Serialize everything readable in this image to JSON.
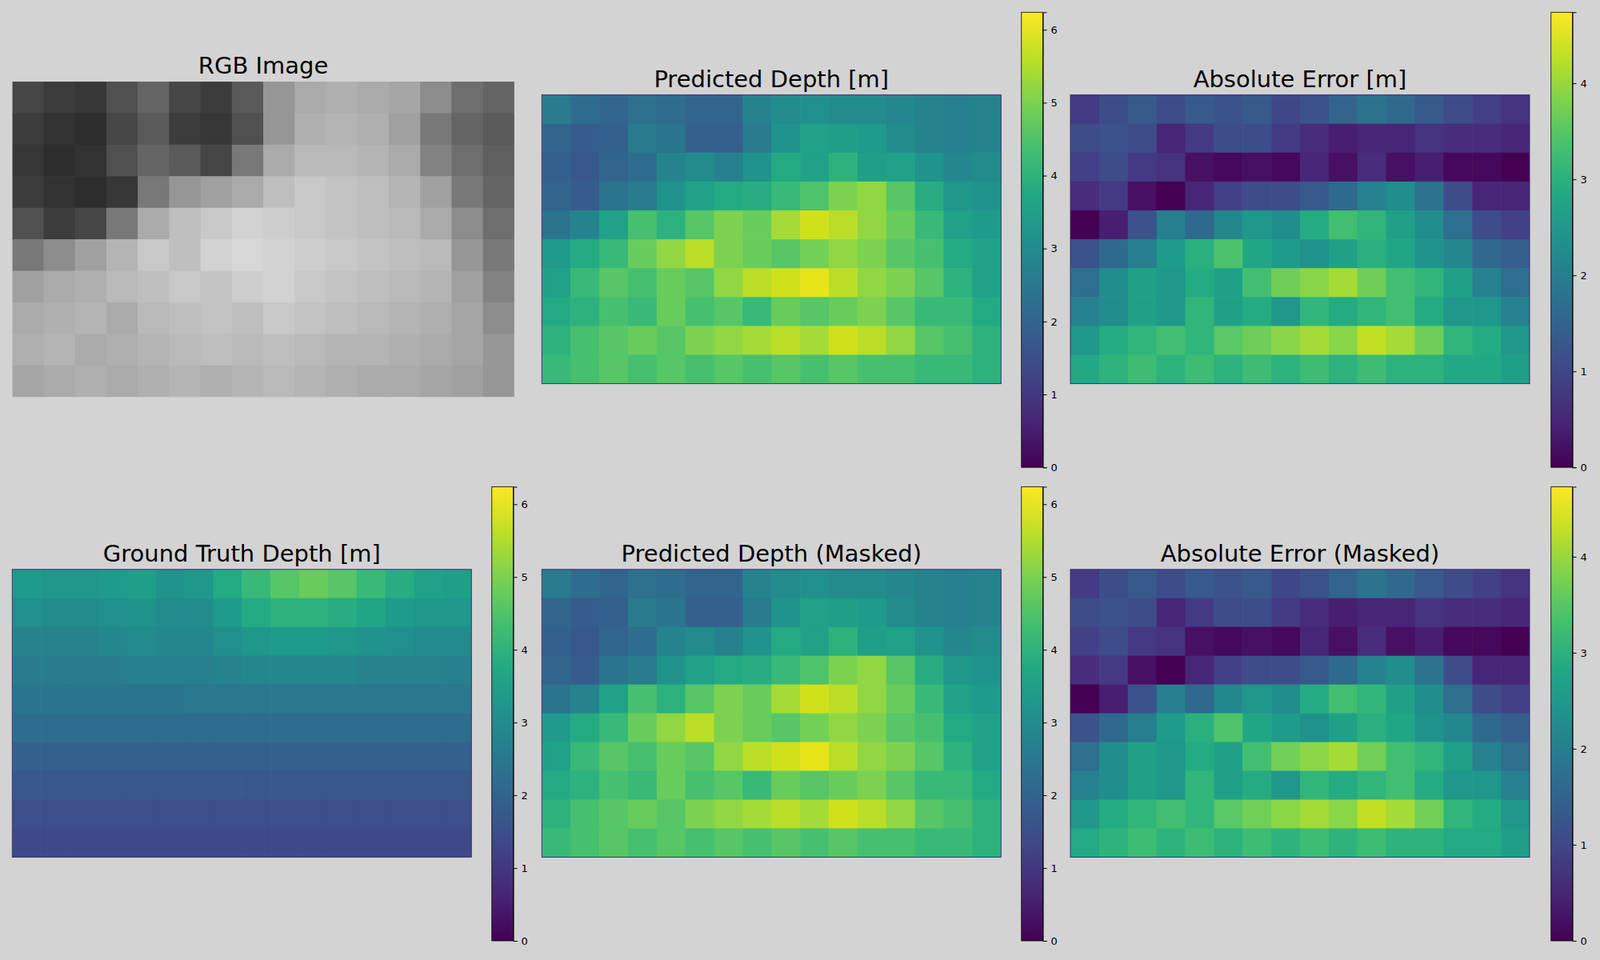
{
  "chart_data": [
    {
      "type": "image",
      "title": "RGB Image",
      "tick_labels": false,
      "cells": [
        [
          70,
          60,
          55,
          80,
          100,
          70,
          60,
          90,
          150,
          170,
          175,
          170,
          165,
          140,
          110,
          100
        ],
        [
          60,
          50,
          45,
          70,
          90,
          60,
          55,
          80,
          150,
          175,
          180,
          175,
          160,
          120,
          100,
          90
        ],
        [
          55,
          45,
          50,
          80,
          100,
          90,
          70,
          120,
          170,
          185,
          185,
          180,
          170,
          130,
          110,
          95
        ],
        [
          60,
          50,
          45,
          55,
          120,
          150,
          160,
          170,
          190,
          200,
          195,
          190,
          180,
          160,
          120,
          100
        ],
        [
          80,
          60,
          70,
          120,
          170,
          190,
          200,
          210,
          205,
          200,
          195,
          190,
          185,
          170,
          140,
          110
        ],
        [
          120,
          140,
          160,
          180,
          200,
          190,
          210,
          215,
          210,
          205,
          200,
          195,
          190,
          185,
          150,
          120
        ],
        [
          160,
          170,
          175,
          185,
          190,
          200,
          195,
          205,
          210,
          200,
          195,
          190,
          185,
          180,
          160,
          130
        ],
        [
          170,
          175,
          180,
          170,
          185,
          190,
          195,
          190,
          200,
          195,
          190,
          185,
          180,
          175,
          165,
          140
        ],
        [
          175,
          180,
          170,
          175,
          180,
          185,
          190,
          185,
          190,
          185,
          180,
          180,
          175,
          170,
          165,
          150
        ],
        [
          165,
          170,
          175,
          170,
          175,
          180,
          175,
          180,
          185,
          180,
          175,
          170,
          170,
          165,
          160,
          150
        ]
      ]
    },
    {
      "type": "heatmap",
      "title": "Predicted Depth [m]",
      "tick_labels": false,
      "color_range": [
        0,
        6.24
      ],
      "color_ticks": [
        0,
        1,
        2,
        3,
        4,
        5,
        6
      ],
      "cells": [
        [
          2.6,
          2.2,
          2.0,
          2.3,
          2.2,
          2.0,
          2.0,
          2.8,
          3.0,
          3.1,
          3.0,
          3.0,
          2.9,
          2.8,
          2.7,
          2.8
        ],
        [
          2.0,
          1.8,
          1.9,
          2.6,
          2.4,
          1.9,
          1.9,
          2.6,
          3.2,
          3.6,
          3.5,
          3.4,
          3.0,
          2.8,
          2.7,
          2.8
        ],
        [
          1.9,
          1.7,
          2.0,
          2.2,
          2.8,
          3.0,
          2.7,
          3.2,
          3.8,
          3.6,
          4.0,
          3.5,
          3.6,
          3.2,
          2.9,
          3.0
        ],
        [
          2.0,
          1.8,
          2.4,
          2.6,
          3.2,
          3.6,
          3.8,
          3.9,
          4.2,
          4.5,
          5.0,
          5.2,
          4.6,
          3.9,
          3.3,
          3.2
        ],
        [
          2.4,
          2.8,
          3.6,
          4.4,
          4.0,
          4.6,
          5.0,
          4.8,
          5.4,
          5.8,
          5.6,
          5.2,
          4.8,
          4.2,
          3.6,
          3.4
        ],
        [
          3.4,
          3.8,
          4.2,
          4.8,
          5.2,
          5.6,
          5.0,
          4.8,
          4.6,
          4.9,
          5.2,
          5.0,
          4.6,
          4.4,
          3.8,
          3.6
        ],
        [
          3.6,
          4.2,
          4.6,
          4.4,
          4.8,
          4.6,
          5.2,
          5.6,
          5.8,
          6.0,
          5.6,
          5.2,
          5.0,
          4.6,
          4.0,
          3.6
        ],
        [
          3.8,
          4.0,
          4.4,
          4.2,
          4.8,
          4.4,
          4.6,
          4.2,
          4.8,
          4.6,
          4.8,
          5.0,
          4.6,
          4.2,
          4.2,
          3.8
        ],
        [
          4.0,
          4.4,
          4.6,
          4.8,
          4.6,
          5.0,
          5.2,
          5.4,
          5.6,
          5.4,
          5.8,
          5.6,
          5.2,
          4.6,
          4.4,
          4.0
        ],
        [
          4.2,
          4.4,
          4.6,
          4.4,
          4.6,
          4.4,
          4.6,
          4.4,
          4.6,
          4.4,
          4.6,
          4.4,
          4.4,
          4.2,
          4.2,
          4.0
        ]
      ]
    },
    {
      "type": "heatmap",
      "title": "Absolute Error [m]",
      "tick_labels": false,
      "color_range": [
        0,
        4.74
      ],
      "color_ticks": [
        0,
        1,
        2,
        3,
        4
      ],
      "cells": [
        [
          0.8,
          1.1,
          1.3,
          1.1,
          1.3,
          1.2,
          1.3,
          1.0,
          1.2,
          1.5,
          1.8,
          1.6,
          1.3,
          1.1,
          0.9,
          0.7
        ],
        [
          1.1,
          1.2,
          1.1,
          0.5,
          0.8,
          1.1,
          1.1,
          0.8,
          0.6,
          0.4,
          0.5,
          0.5,
          0.7,
          0.6,
          0.6,
          0.5
        ],
        [
          0.9,
          1.1,
          0.8,
          0.7,
          0.2,
          0.1,
          0.2,
          0.1,
          0.5,
          0.2,
          0.6,
          0.2,
          0.4,
          0.1,
          0.1,
          0.0
        ],
        [
          0.6,
          0.8,
          0.2,
          0.0,
          0.5,
          0.9,
          1.1,
          1.1,
          1.3,
          1.6,
          2.1,
          2.3,
          1.8,
          1.1,
          0.5,
          0.5
        ],
        [
          0.0,
          0.4,
          1.2,
          2.0,
          1.6,
          2.2,
          2.5,
          2.3,
          2.9,
          3.3,
          3.1,
          2.7,
          2.3,
          1.7,
          1.1,
          0.9
        ],
        [
          1.2,
          1.6,
          2.0,
          2.6,
          3.0,
          3.4,
          2.8,
          2.6,
          2.4,
          2.7,
          3.0,
          2.8,
          2.4,
          2.2,
          1.6,
          1.4
        ],
        [
          1.7,
          2.3,
          2.7,
          2.5,
          2.9,
          2.7,
          3.3,
          3.7,
          3.9,
          4.1,
          3.7,
          3.3,
          3.1,
          2.7,
          2.1,
          1.7
        ],
        [
          2.1,
          2.3,
          2.7,
          2.5,
          3.1,
          2.7,
          2.9,
          2.5,
          3.1,
          2.9,
          3.1,
          3.3,
          2.9,
          2.5,
          2.5,
          2.1
        ],
        [
          2.5,
          2.9,
          3.1,
          3.3,
          3.1,
          3.5,
          3.7,
          3.9,
          4.1,
          3.9,
          4.3,
          4.1,
          3.7,
          3.1,
          2.9,
          2.5
        ],
        [
          2.85,
          3.05,
          3.25,
          3.05,
          3.25,
          3.05,
          3.25,
          3.05,
          3.25,
          3.05,
          3.25,
          3.05,
          3.05,
          2.85,
          2.85,
          2.65
        ]
      ]
    },
    {
      "type": "heatmap",
      "title": "Ground Truth Depth [m]",
      "tick_labels": false,
      "color_range": [
        0,
        6.24
      ],
      "color_ticks": [
        0,
        1,
        2,
        3,
        4,
        5,
        6
      ],
      "cells": [
        [
          3.4,
          3.3,
          3.3,
          3.4,
          3.5,
          3.2,
          3.3,
          3.8,
          4.2,
          4.6,
          4.8,
          4.6,
          4.2,
          3.9,
          3.6,
          3.5
        ],
        [
          3.1,
          3.0,
          3.0,
          3.1,
          3.2,
          3.0,
          3.0,
          3.4,
          3.8,
          4.0,
          4.0,
          3.9,
          3.7,
          3.4,
          3.3,
          3.3
        ],
        [
          2.8,
          2.8,
          2.8,
          2.9,
          3.0,
          2.9,
          2.9,
          3.1,
          3.3,
          3.4,
          3.4,
          3.3,
          3.2,
          3.1,
          3.0,
          3.0
        ],
        [
          2.6,
          2.6,
          2.6,
          2.6,
          2.7,
          2.7,
          2.7,
          2.8,
          2.9,
          2.9,
          2.9,
          2.9,
          2.8,
          2.8,
          2.8,
          2.7
        ],
        [
          2.4,
          2.4,
          2.4,
          2.4,
          2.4,
          2.4,
          2.5,
          2.5,
          2.5,
          2.5,
          2.5,
          2.5,
          2.5,
          2.5,
          2.5,
          2.5
        ],
        [
          2.2,
          2.2,
          2.2,
          2.2,
          2.2,
          2.2,
          2.2,
          2.2,
          2.2,
          2.2,
          2.2,
          2.2,
          2.2,
          2.2,
          2.2,
          2.2
        ],
        [
          1.9,
          1.9,
          1.9,
          1.9,
          1.9,
          1.9,
          1.9,
          1.9,
          1.9,
          1.9,
          1.9,
          1.9,
          1.9,
          1.9,
          1.9,
          1.9
        ],
        [
          1.7,
          1.7,
          1.7,
          1.7,
          1.7,
          1.7,
          1.7,
          1.7,
          1.7,
          1.7,
          1.7,
          1.7,
          1.7,
          1.7,
          1.7,
          1.7
        ],
        [
          1.5,
          1.5,
          1.5,
          1.5,
          1.5,
          1.5,
          1.5,
          1.5,
          1.5,
          1.5,
          1.5,
          1.5,
          1.5,
          1.5,
          1.5,
          1.5
        ],
        [
          1.35,
          1.35,
          1.35,
          1.35,
          1.35,
          1.35,
          1.35,
          1.35,
          1.35,
          1.35,
          1.35,
          1.35,
          1.35,
          1.35,
          1.35,
          1.35
        ]
      ]
    },
    {
      "type": "heatmap",
      "title": "Predicted Depth (Masked)",
      "tick_labels": false,
      "color_range": [
        0,
        6.24
      ],
      "color_ticks": [
        0,
        1,
        2,
        3,
        4,
        5,
        6
      ],
      "cells": [
        [
          2.6,
          2.2,
          2.0,
          2.3,
          2.2,
          2.0,
          2.0,
          2.8,
          3.0,
          3.1,
          3.0,
          3.0,
          2.9,
          2.8,
          2.7,
          2.8
        ],
        [
          2.0,
          1.8,
          1.9,
          2.6,
          2.4,
          1.9,
          1.9,
          2.6,
          3.2,
          3.6,
          3.5,
          3.4,
          3.0,
          2.8,
          2.7,
          2.8
        ],
        [
          1.9,
          1.7,
          2.0,
          2.2,
          2.8,
          3.0,
          2.7,
          3.2,
          3.8,
          3.6,
          4.0,
          3.5,
          3.6,
          3.2,
          2.9,
          3.0
        ],
        [
          2.0,
          1.8,
          2.4,
          2.6,
          3.2,
          3.6,
          3.8,
          3.9,
          4.2,
          4.5,
          5.0,
          5.2,
          4.6,
          3.9,
          3.3,
          3.2
        ],
        [
          2.4,
          2.8,
          3.6,
          4.4,
          4.0,
          4.6,
          5.0,
          4.8,
          5.4,
          5.8,
          5.6,
          5.2,
          4.8,
          4.2,
          3.6,
          3.4
        ],
        [
          3.4,
          3.8,
          4.2,
          4.8,
          5.2,
          5.6,
          5.0,
          4.8,
          4.6,
          4.9,
          5.2,
          5.0,
          4.6,
          4.4,
          3.8,
          3.6
        ],
        [
          3.6,
          4.2,
          4.6,
          4.4,
          4.8,
          4.6,
          5.2,
          5.6,
          5.8,
          6.0,
          5.6,
          5.2,
          5.0,
          4.6,
          4.0,
          3.6
        ],
        [
          3.8,
          4.0,
          4.4,
          4.2,
          4.8,
          4.4,
          4.6,
          4.2,
          4.8,
          4.6,
          4.8,
          5.0,
          4.6,
          4.2,
          4.2,
          3.8
        ],
        [
          4.0,
          4.4,
          4.6,
          4.8,
          4.6,
          5.0,
          5.2,
          5.4,
          5.6,
          5.4,
          5.8,
          5.6,
          5.2,
          4.6,
          4.4,
          4.0
        ],
        [
          4.2,
          4.4,
          4.6,
          4.4,
          4.6,
          4.4,
          4.6,
          4.4,
          4.6,
          4.4,
          4.6,
          4.4,
          4.4,
          4.2,
          4.2,
          4.0
        ]
      ]
    },
    {
      "type": "heatmap",
      "title": "Absolute Error (Masked)",
      "tick_labels": false,
      "color_range": [
        0,
        4.73
      ],
      "color_ticks": [
        0,
        1,
        2,
        3,
        4
      ],
      "cells": [
        [
          0.8,
          1.1,
          1.3,
          1.1,
          1.3,
          1.2,
          1.3,
          1.0,
          1.2,
          1.5,
          1.8,
          1.6,
          1.3,
          1.1,
          0.9,
          0.7
        ],
        [
          1.1,
          1.2,
          1.1,
          0.5,
          0.8,
          1.1,
          1.1,
          0.8,
          0.6,
          0.4,
          0.5,
          0.5,
          0.7,
          0.6,
          0.6,
          0.5
        ],
        [
          0.9,
          1.1,
          0.8,
          0.7,
          0.2,
          0.1,
          0.2,
          0.1,
          0.5,
          0.2,
          0.6,
          0.2,
          0.4,
          0.1,
          0.1,
          0.0
        ],
        [
          0.6,
          0.8,
          0.2,
          0.0,
          0.5,
          0.9,
          1.1,
          1.1,
          1.3,
          1.6,
          2.1,
          2.3,
          1.8,
          1.1,
          0.5,
          0.5
        ],
        [
          0.0,
          0.4,
          1.2,
          2.0,
          1.6,
          2.2,
          2.5,
          2.3,
          2.9,
          3.3,
          3.1,
          2.7,
          2.3,
          1.7,
          1.1,
          0.9
        ],
        [
          1.2,
          1.6,
          2.0,
          2.6,
          3.0,
          3.4,
          2.8,
          2.6,
          2.4,
          2.7,
          3.0,
          2.8,
          2.4,
          2.2,
          1.6,
          1.4
        ],
        [
          1.7,
          2.3,
          2.7,
          2.5,
          2.9,
          2.7,
          3.3,
          3.7,
          3.9,
          4.1,
          3.7,
          3.3,
          3.1,
          2.7,
          2.1,
          1.7
        ],
        [
          2.1,
          2.3,
          2.7,
          2.5,
          3.1,
          2.7,
          2.9,
          2.5,
          3.1,
          2.9,
          3.1,
          3.3,
          2.9,
          2.5,
          2.5,
          2.1
        ],
        [
          2.5,
          2.9,
          3.1,
          3.3,
          3.1,
          3.5,
          3.7,
          3.9,
          4.1,
          3.9,
          4.3,
          4.1,
          3.7,
          3.1,
          2.9,
          2.5
        ],
        [
          2.85,
          3.05,
          3.25,
          3.05,
          3.25,
          3.05,
          3.25,
          3.05,
          3.25,
          3.05,
          3.25,
          3.05,
          3.05,
          2.85,
          2.85,
          2.65
        ]
      ]
    }
  ]
}
